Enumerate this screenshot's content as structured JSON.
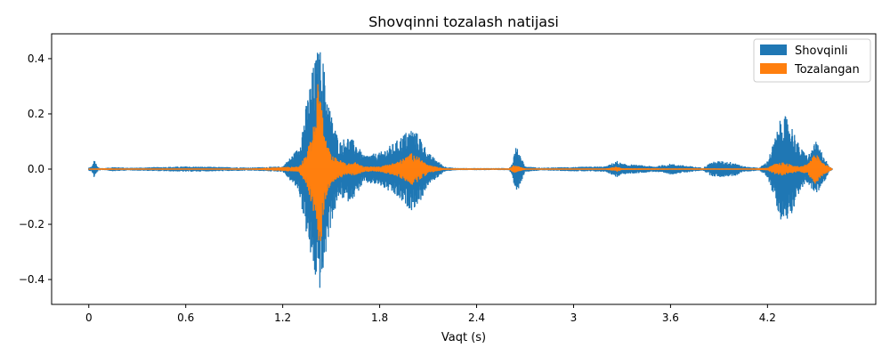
{
  "chart_data": {
    "type": "line",
    "title": "Shovqinni tozalash natijasi",
    "xlabel": "Vaqt (s)",
    "ylabel": "",
    "xlim": [
      -0.23,
      4.87
    ],
    "ylim": [
      -0.49,
      0.49
    ],
    "xticks": [
      0,
      0.6,
      1.2,
      1.8,
      2.4,
      3.0,
      3.6,
      4.2
    ],
    "xtick_labels": [
      "0",
      "0.6",
      "1.2",
      "1.8",
      "2.4",
      "3",
      "3.6",
      "4.2"
    ],
    "yticks": [
      -0.4,
      -0.2,
      0.0,
      0.2,
      0.4
    ],
    "ytick_labels": [
      "−0.4",
      "−0.2",
      "0.0",
      "0.2",
      "0.4"
    ],
    "legend_position": "top-right",
    "series": [
      {
        "name": "Shovqinli",
        "color": "#1f77b4",
        "envelope": {
          "t": [
            0.0,
            0.02,
            0.035,
            0.05,
            0.06,
            0.08,
            0.1,
            0.15,
            0.25,
            0.6,
            1.0,
            1.2,
            1.3,
            1.35,
            1.38,
            1.4,
            1.42,
            1.43,
            1.45,
            1.47,
            1.5,
            1.55,
            1.6,
            1.65,
            1.7,
            1.8,
            1.9,
            1.95,
            2.0,
            2.05,
            2.1,
            2.2,
            2.25,
            2.3,
            2.6,
            2.62,
            2.64,
            2.66,
            2.7,
            2.8,
            3.0,
            3.2,
            3.25,
            3.27,
            3.3,
            3.4,
            3.5,
            3.6,
            3.8,
            3.85,
            3.9,
            4.0,
            4.05,
            4.1,
            4.15,
            4.2,
            4.25,
            4.28,
            4.3,
            4.35,
            4.4,
            4.45,
            4.5,
            4.55,
            4.58,
            4.6
          ],
          "amp": [
            0.006,
            0.01,
            0.035,
            0.012,
            0.006,
            0.004,
            0.004,
            0.008,
            0.005,
            0.01,
            0.006,
            0.01,
            0.08,
            0.25,
            0.35,
            0.4,
            0.44,
            0.44,
            0.4,
            0.3,
            0.2,
            0.1,
            0.12,
            0.1,
            0.05,
            0.06,
            0.1,
            0.13,
            0.15,
            0.12,
            0.06,
            0.01,
            0.005,
            0.004,
            0.004,
            0.02,
            0.08,
            0.07,
            0.01,
            0.005,
            0.008,
            0.01,
            0.025,
            0.03,
            0.02,
            0.015,
            0.01,
            0.02,
            0.005,
            0.025,
            0.03,
            0.025,
            0.01,
            0.008,
            0.005,
            0.03,
            0.12,
            0.18,
            0.2,
            0.16,
            0.08,
            0.05,
            0.1,
            0.05,
            0.01,
            0.004
          ]
        }
      },
      {
        "name": "Tozalangan",
        "color": "#ff7f0e",
        "envelope": {
          "t": [
            0.0,
            0.1,
            0.25,
            1.0,
            1.3,
            1.35,
            1.38,
            1.4,
            1.42,
            1.44,
            1.46,
            1.5,
            1.6,
            1.65,
            1.7,
            1.8,
            1.9,
            1.95,
            2.0,
            2.05,
            2.1,
            2.2,
            2.6,
            2.63,
            2.66,
            2.7,
            3.2,
            3.27,
            3.3,
            4.1,
            4.2,
            4.25,
            4.3,
            4.35,
            4.4,
            4.45,
            4.5,
            4.53,
            4.6
          ],
          "amp": [
            0.002,
            0.003,
            0.002,
            0.002,
            0.01,
            0.06,
            0.13,
            0.18,
            0.33,
            0.25,
            0.12,
            0.05,
            0.02,
            0.025,
            0.01,
            0.01,
            0.025,
            0.04,
            0.06,
            0.04,
            0.015,
            0.003,
            0.002,
            0.015,
            0.01,
            0.002,
            0.002,
            0.01,
            0.003,
            0.002,
            0.005,
            0.02,
            0.025,
            0.015,
            0.01,
            0.02,
            0.06,
            0.03,
            0.002
          ]
        }
      }
    ]
  }
}
